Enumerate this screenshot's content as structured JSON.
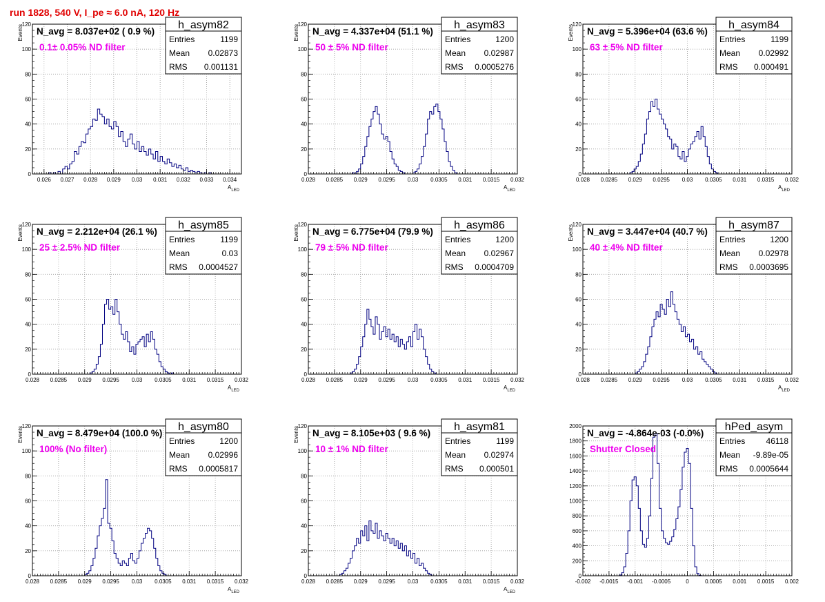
{
  "run_title": "run 1828,   540 V, I_pe ≈ 6.0 nA, 120 Hz",
  "colors": {
    "histogram": "#000080",
    "label": "#ee00ee",
    "title": "#e00000"
  },
  "chart_data": [
    {
      "type": "histogram",
      "hist_name": "h_asym82",
      "navg": "N_avg = 8.037e+02 ( 0.9 %)",
      "label": "0.1± 0.05% ND filter",
      "stats": {
        "Entries": "1199",
        "Mean": "0.02873",
        "RMS": "0.001131"
      },
      "ylabel": "Events",
      "xlabel": "A",
      "xlabel_sub": "LED",
      "xlim": [
        0.0255,
        0.0345
      ],
      "ylim": [
        0,
        120
      ],
      "xticks": [
        "0.026",
        "0.027",
        "0.028",
        "0.029",
        "0.03",
        "0.031",
        "0.032",
        "0.033",
        "0.034"
      ],
      "yticks": [
        "0",
        "20",
        "40",
        "60",
        "80",
        "100",
        "120"
      ],
      "bins": {
        "start": 0.0262,
        "width": 0.0001,
        "counts": [
          1,
          0,
          1,
          0,
          2,
          0,
          4,
          6,
          4,
          8,
          10,
          18,
          16,
          22,
          26,
          25,
          32,
          36,
          38,
          44,
          43,
          52,
          48,
          46,
          40,
          44,
          38,
          36,
          42,
          38,
          30,
          34,
          26,
          22,
          28,
          32,
          24,
          20,
          26,
          18,
          22,
          18,
          15,
          20,
          16,
          12,
          18,
          10,
          14,
          10,
          8,
          12,
          9,
          6,
          8,
          5,
          7,
          4,
          3,
          5,
          2,
          3,
          2,
          1,
          2,
          1,
          0,
          1,
          0,
          1,
          0,
          0,
          0,
          0,
          0,
          0,
          0,
          0,
          0,
          0
        ]
      }
    },
    {
      "type": "histogram",
      "hist_name": "h_asym83",
      "navg": "N_avg = 4.337e+04 (51.1 %)",
      "label": "50 ± 5% ND filter",
      "stats": {
        "Entries": "1200",
        "Mean": "0.02987",
        "RMS": "0.0005276"
      },
      "ylabel": "Events",
      "xlabel": "A",
      "xlabel_sub": "LED",
      "xlim": [
        0.028,
        0.032
      ],
      "ylim": [
        0,
        120
      ],
      "xticks": [
        "0.028",
        "0.0285",
        "0.029",
        "0.0295",
        "0.03",
        "0.0305",
        "0.031",
        "0.0315",
        "0.032"
      ],
      "yticks": [
        "0",
        "20",
        "40",
        "60",
        "80",
        "100",
        "120"
      ],
      "bins": {
        "start": 0.0288,
        "width": 4e-05,
        "counts": [
          0,
          1,
          0,
          2,
          4,
          8,
          14,
          22,
          30,
          38,
          44,
          50,
          54,
          48,
          40,
          32,
          28,
          30,
          26,
          18,
          12,
          8,
          6,
          3,
          2,
          1,
          0,
          0,
          0,
          0,
          1,
          2,
          4,
          8,
          14,
          22,
          32,
          44,
          50,
          48,
          54,
          56,
          50,
          44,
          36,
          26,
          18,
          10,
          6,
          3,
          1,
          0
        ]
      }
    },
    {
      "type": "histogram",
      "hist_name": "h_asym84",
      "navg": "N_avg = 5.396e+04 (63.6 %)",
      "label": "63 ± 5% ND filter",
      "stats": {
        "Entries": "1199",
        "Mean": "0.02992",
        "RMS": "0.000491"
      },
      "ylabel": "Events",
      "xlabel": "A",
      "xlabel_sub": "LED",
      "xlim": [
        0.028,
        0.032
      ],
      "ylim": [
        0,
        120
      ],
      "xticks": [
        "0.028",
        "0.0285",
        "0.029",
        "0.0295",
        "0.03",
        "0.0305",
        "0.031",
        "0.0315",
        "0.032"
      ],
      "yticks": [
        "0",
        "20",
        "40",
        "60",
        "80",
        "100",
        "120"
      ],
      "bins": {
        "start": 0.0289,
        "width": 4e-05,
        "counts": [
          1,
          2,
          4,
          6,
          10,
          16,
          24,
          32,
          44,
          50,
          58,
          54,
          60,
          52,
          48,
          44,
          40,
          36,
          30,
          28,
          20,
          24,
          22,
          14,
          12,
          18,
          10,
          14,
          20,
          24,
          26,
          30,
          34,
          28,
          38,
          30,
          22,
          14,
          8,
          4,
          2,
          1,
          0
        ]
      }
    },
    {
      "type": "histogram",
      "hist_name": "h_asym85",
      "navg": "N_avg = 2.212e+04 (26.1 %)",
      "label": "25 ± 2.5% ND filter",
      "stats": {
        "Entries": "1199",
        "Mean": "0.03",
        "RMS": "0.0004527"
      },
      "ylabel": "Events",
      "xlabel": "A",
      "xlabel_sub": "LED",
      "xlim": [
        0.028,
        0.032
      ],
      "ylim": [
        0,
        120
      ],
      "xticks": [
        "0.028",
        "0.0285",
        "0.029",
        "0.0295",
        "0.03",
        "0.0305",
        "0.031",
        "0.0315",
        "0.032"
      ],
      "yticks": [
        "0",
        "20",
        "40",
        "60",
        "80",
        "100",
        "120"
      ],
      "bins": {
        "start": 0.0291,
        "width": 4e-05,
        "counts": [
          1,
          2,
          4,
          8,
          14,
          24,
          40,
          56,
          60,
          52,
          54,
          48,
          60,
          50,
          40,
          32,
          28,
          34,
          26,
          18,
          22,
          16,
          24,
          26,
          28,
          30,
          22,
          32,
          26,
          34,
          28,
          20,
          16,
          10,
          6,
          4,
          2,
          1,
          0,
          1
        ]
      }
    },
    {
      "type": "histogram",
      "hist_name": "h_asym86",
      "navg": "N_avg = 6.775e+04 (79.9 %)",
      "label": "79 ± 5% ND filter",
      "stats": {
        "Entries": "1200",
        "Mean": "0.02967",
        "RMS": "0.0004709"
      },
      "ylabel": "Events",
      "xlabel": "A",
      "xlabel_sub": "LED",
      "xlim": [
        0.028,
        0.032
      ],
      "ylim": [
        0,
        120
      ],
      "xticks": [
        "0.028",
        "0.0285",
        "0.029",
        "0.0295",
        "0.03",
        "0.0305",
        "0.031",
        "0.0315",
        "0.032"
      ],
      "yticks": [
        "0",
        "20",
        "40",
        "60",
        "80",
        "100",
        "120"
      ],
      "bins": {
        "start": 0.0288,
        "width": 4e-05,
        "counts": [
          1,
          2,
          4,
          8,
          14,
          22,
          30,
          40,
          52,
          44,
          38,
          32,
          46,
          40,
          28,
          34,
          38,
          30,
          36,
          28,
          32,
          26,
          30,
          22,
          28,
          24,
          20,
          26,
          30,
          22,
          34,
          40,
          28,
          36,
          30,
          20,
          14,
          8,
          4,
          2,
          1,
          0
        ]
      }
    },
    {
      "type": "histogram",
      "hist_name": "h_asym87",
      "navg": "N_avg = 3.447e+04 (40.7 %)",
      "label": "40 ± 4% ND filter",
      "stats": {
        "Entries": "1200",
        "Mean": "0.02978",
        "RMS": "0.0003695"
      },
      "ylabel": "Events",
      "xlabel": "A",
      "xlabel_sub": "LED",
      "xlim": [
        0.028,
        0.032
      ],
      "ylim": [
        0,
        120
      ],
      "xticks": [
        "0.028",
        "0.0285",
        "0.029",
        "0.0295",
        "0.03",
        "0.0305",
        "0.031",
        "0.0315",
        "0.032"
      ],
      "yticks": [
        "0",
        "20",
        "40",
        "60",
        "80",
        "100",
        "120"
      ],
      "bins": {
        "start": 0.029,
        "width": 4e-05,
        "counts": [
          1,
          2,
          4,
          6,
          10,
          16,
          22,
          30,
          38,
          44,
          50,
          46,
          56,
          52,
          48,
          60,
          54,
          66,
          56,
          50,
          44,
          40,
          34,
          38,
          30,
          32,
          26,
          28,
          20,
          22,
          16,
          18,
          12,
          10,
          8,
          6,
          4,
          2,
          1,
          0
        ]
      }
    },
    {
      "type": "histogram",
      "hist_name": "h_asym80",
      "navg": "N_avg = 8.479e+04 (100.0 %)",
      "label": "100% (No filter)",
      "stats": {
        "Entries": "1200",
        "Mean": "0.02996",
        "RMS": "0.0005817"
      },
      "ylabel": "Events",
      "xlabel": "A",
      "xlabel_sub": "LED",
      "xlim": [
        0.028,
        0.032
      ],
      "ylim": [
        0,
        120
      ],
      "xticks": [
        "0.028",
        "0.0285",
        "0.029",
        "0.0295",
        "0.03",
        "0.0305",
        "0.031",
        "0.0315",
        "0.032"
      ],
      "yticks": [
        "0",
        "20",
        "40",
        "60",
        "80",
        "100",
        "120"
      ],
      "bins": {
        "start": 0.029,
        "width": 4e-05,
        "counts": [
          1,
          2,
          4,
          8,
          14,
          22,
          32,
          40,
          46,
          54,
          77,
          42,
          38,
          28,
          18,
          14,
          10,
          8,
          12,
          10,
          8,
          14,
          18,
          12,
          10,
          14,
          20,
          26,
          30,
          34,
          38,
          36,
          30,
          22,
          14,
          8,
          4,
          2,
          1,
          0
        ]
      }
    },
    {
      "type": "histogram",
      "hist_name": "h_asym81",
      "navg": "N_avg = 8.105e+03 ( 9.6 %)",
      "label": "10 ± 1% ND filter",
      "stats": {
        "Entries": "1199",
        "Mean": "0.02974",
        "RMS": "0.000501"
      },
      "ylabel": "Events",
      "xlabel": "A",
      "xlabel_sub": "LED",
      "xlim": [
        0.028,
        0.032
      ],
      "ylim": [
        0,
        120
      ],
      "xticks": [
        "0.028",
        "0.0285",
        "0.029",
        "0.0295",
        "0.03",
        "0.0305",
        "0.031",
        "0.0315",
        "0.032"
      ],
      "yticks": [
        "0",
        "20",
        "40",
        "60",
        "80",
        "100",
        "120"
      ],
      "bins": {
        "start": 0.0286,
        "width": 4e-05,
        "counts": [
          1,
          2,
          4,
          6,
          10,
          14,
          20,
          24,
          30,
          26,
          36,
          32,
          40,
          28,
          44,
          36,
          34,
          42,
          30,
          36,
          32,
          28,
          34,
          30,
          26,
          30,
          24,
          28,
          22,
          26,
          20,
          24,
          16,
          20,
          14,
          18,
          10,
          14,
          8,
          10,
          6,
          4,
          2,
          1,
          0
        ]
      }
    },
    {
      "type": "histogram",
      "hist_name": "hPed_asym",
      "navg": "N_avg = -4.864e-03 (-0.0%)",
      "label": "Shutter Closed",
      "stats": {
        "Entries": "46118",
        "Mean": "-9.89e-05",
        "RMS": "0.0005644"
      },
      "ylabel": "",
      "xlabel": "",
      "xlabel_sub": "",
      "xlim": [
        -0.002,
        0.002
      ],
      "ylim": [
        0,
        2000
      ],
      "xticks": [
        "-0.002",
        "-0.0015",
        "-0.001",
        "-0.0005",
        "0",
        "0.0005",
        "0.001",
        "0.0015",
        "0.002"
      ],
      "yticks": [
        "0",
        "200",
        "400",
        "600",
        "800",
        "1000",
        "1200",
        "1400",
        "1600",
        "1800",
        "2000"
      ],
      "bins": {
        "start": -0.00134,
        "width": 4e-05,
        "counts": [
          0,
          10,
          40,
          120,
          300,
          600,
          1000,
          1280,
          1320,
          1200,
          900,
          600,
          420,
          380,
          500,
          800,
          1300,
          1850,
          1900,
          1500,
          900,
          600,
          500,
          440,
          420,
          460,
          520,
          620,
          760,
          920,
          1150,
          1450,
          1650,
          1700,
          1500,
          900,
          400,
          120,
          30,
          5,
          0
        ]
      }
    }
  ]
}
